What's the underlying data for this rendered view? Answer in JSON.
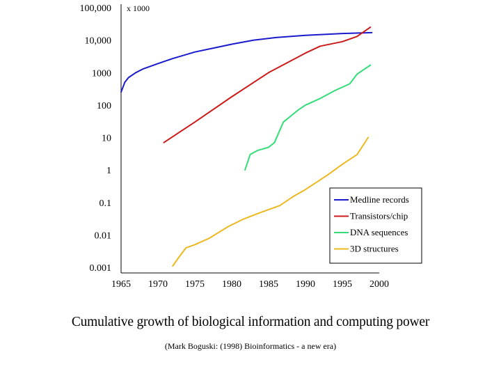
{
  "chart_data": {
    "type": "line",
    "title": "Cumulative growth of biological information and computing power",
    "subtitle": "(Mark Boguski: (1998) Bioinformatics - a new era)",
    "y_multiplier_label": "x 1000",
    "yscale": "log",
    "xlim": [
      1965,
      2000
    ],
    "ylim": [
      0.001,
      100000
    ],
    "x_ticks": [
      1965,
      1970,
      1975,
      1980,
      1985,
      1990,
      1995,
      2000
    ],
    "x_tick_labels": [
      "1965",
      "1970",
      "1975",
      "1980",
      "1985",
      "1990",
      "1995",
      "2000"
    ],
    "y_ticks": [
      100000,
      10000,
      1000,
      100,
      10,
      1,
      0.1,
      0.01,
      0.001
    ],
    "y_tick_labels": [
      "100,000",
      "10,000",
      "1000",
      "100",
      "10",
      "1",
      "0.1",
      "0.01",
      "0.001"
    ],
    "legend_position": "lower-right",
    "series": [
      {
        "name": "Medline records",
        "color": "#1a1acc",
        "points": [
          [
            1965.0,
            250
          ],
          [
            1965.5,
            500
          ],
          [
            1966,
            700
          ],
          [
            1967,
            1000
          ],
          [
            1968,
            1300
          ],
          [
            1970,
            1900
          ],
          [
            1972,
            2700
          ],
          [
            1975,
            4300
          ],
          [
            1978,
            6000
          ],
          [
            1980,
            7500
          ],
          [
            1983,
            10000
          ],
          [
            1986,
            12000
          ],
          [
            1990,
            14000
          ],
          [
            1995,
            16000
          ],
          [
            1999,
            17000
          ]
        ]
      },
      {
        "name": "Transistors/chip",
        "color": "#cc1a1a",
        "points": [
          [
            1970.8,
            7
          ],
          [
            1975,
            30
          ],
          [
            1980,
            180
          ],
          [
            1985,
            1000
          ],
          [
            1990,
            4000
          ],
          [
            1992,
            6500
          ],
          [
            1995,
            9000
          ],
          [
            1997,
            13000
          ],
          [
            1998.8,
            25000
          ]
        ]
      },
      {
        "name": "DNA sequences",
        "color": "#33dd77",
        "points": [
          [
            1981.8,
            1
          ],
          [
            1982.5,
            3
          ],
          [
            1983.5,
            4
          ],
          [
            1985,
            5
          ],
          [
            1985.8,
            7
          ],
          [
            1987,
            30
          ],
          [
            1989,
            70
          ],
          [
            1990,
            100
          ],
          [
            1992,
            160
          ],
          [
            1994,
            280
          ],
          [
            1996,
            450
          ],
          [
            1997,
            900
          ],
          [
            1998.8,
            1700
          ]
        ]
      },
      {
        "name": "3D structures",
        "color": "#ecb820",
        "points": [
          [
            1972,
            0.0011
          ],
          [
            1972.8,
            0.002
          ],
          [
            1973.8,
            0.004
          ],
          [
            1975,
            0.005
          ],
          [
            1977,
            0.008
          ],
          [
            1979.5,
            0.018
          ],
          [
            1981.5,
            0.03
          ],
          [
            1984,
            0.05
          ],
          [
            1986.5,
            0.08
          ],
          [
            1988.5,
            0.16
          ],
          [
            1990,
            0.25
          ],
          [
            1993,
            0.7
          ],
          [
            1995,
            1.5
          ],
          [
            1997,
            3
          ],
          [
            1998.5,
            10
          ]
        ]
      }
    ]
  }
}
